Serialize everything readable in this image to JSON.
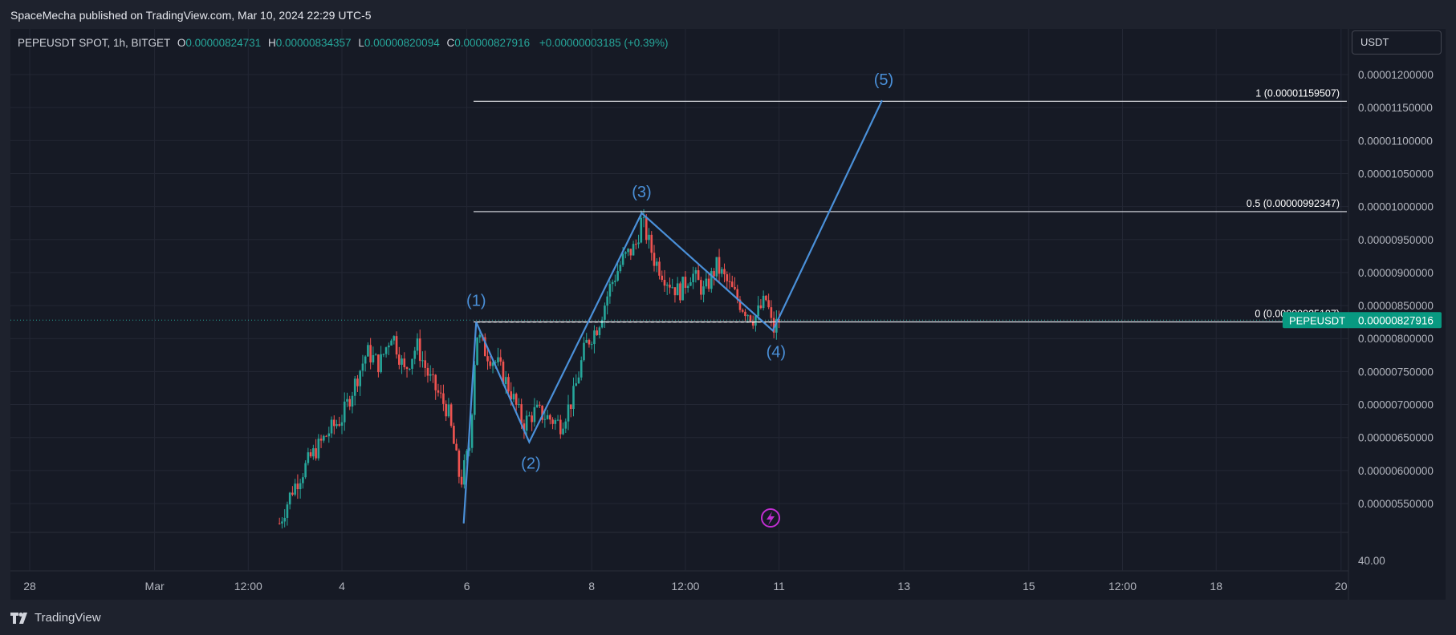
{
  "header": {
    "published": "SpaceMecha published on TradingView.com, Mar 10, 2024 22:29 UTC-5"
  },
  "legend": {
    "symbol": "PEPEUSDT SPOT, 1h, BITGET",
    "o_label": "O",
    "o_value": "0.00000824731",
    "h_label": "H",
    "h_value": "0.00000834357",
    "l_label": "L",
    "l_value": "0.00000820094",
    "c_label": "C",
    "c_value": "0.00000827916",
    "change": "+0.00000003185 (+0.39%)"
  },
  "currency_button": "USDT",
  "brand": {
    "name": "TradingView"
  },
  "colors": {
    "up": "#26a69a",
    "down": "#ef5350",
    "wave": "#4a90d9",
    "background": "#161a25",
    "grid": "#232734"
  },
  "chart_data": {
    "type": "candlestick",
    "symbol": "PEPEUSDT",
    "price_axis_ticks": [
      "0.00001200000",
      "0.00001150000",
      "0.00001100000",
      "0.00001050000",
      "0.00001000000",
      "0.00000950000",
      "0.00000900000",
      "0.00000850000",
      "0.00000800000",
      "0.00000750000",
      "0.00000700000",
      "0.00000650000",
      "0.00000600000",
      "0.00000550000"
    ],
    "volume_axis_tick": "40.00",
    "time_axis_ticks": [
      {
        "label": "28",
        "x": 0.0
      },
      {
        "label": "Mar",
        "x": 2.0
      },
      {
        "label": "12:00",
        "x": 3.5
      },
      {
        "label": "4",
        "x": 5.0
      },
      {
        "label": "6",
        "x": 7.0
      },
      {
        "label": "8",
        "x": 9.0
      },
      {
        "label": "12:00",
        "x": 10.5
      },
      {
        "label": "11",
        "x": 12.0
      },
      {
        "label": "13",
        "x": 14.0
      },
      {
        "label": "15",
        "x": 16.0
      },
      {
        "label": "12:00",
        "x": 17.5
      },
      {
        "label": "18",
        "x": 19.0
      },
      {
        "label": "20",
        "x": 21.0
      }
    ],
    "ylim": [
      5.2e-06,
      1.23e-05
    ],
    "last_price": {
      "label": "PEPEUSDT",
      "value": "0.00000827916",
      "y": 8.27916e-06
    },
    "fib_levels": [
      {
        "label": "1 (0.00001159507)",
        "y": 1.159507e-05
      },
      {
        "label": "0.5 (0.00000992347)",
        "y": 9.92347e-06
      },
      {
        "label": "0 (0.00000825187)",
        "y": 8.25187e-06
      }
    ],
    "elliott_waves": [
      {
        "label": "",
        "x": 6.95,
        "y": 5.2e-06
      },
      {
        "label": "(1)",
        "x": 7.15,
        "y": 8.25e-06
      },
      {
        "label": "(2)",
        "x": 8.0,
        "y": 6.43e-06
      },
      {
        "label": "(3)",
        "x": 9.8,
        "y": 9.9e-06
      },
      {
        "label": "(4)",
        "x": 11.9,
        "y": 8.12e-06
      },
      {
        "label": "(5)",
        "x": 13.65,
        "y": 1.161e-05
      }
    ],
    "wave_label_text": [
      "(1)",
      "(2)",
      "(3)",
      "(4)",
      "(5)"
    ],
    "trend_dashed": [
      {
        "x": 6.95,
        "y": 5.2e-06
      },
      {
        "x": 7.15,
        "y": 8.25e-06
      },
      {
        "x": 11.9,
        "y": 8.25e-06
      }
    ],
    "price_path": [
      [
        4.0,
        5.2e-06
      ],
      [
        4.2,
        5.7e-06
      ],
      [
        4.5,
        6.2e-06
      ],
      [
        4.8,
        6.6e-06
      ],
      [
        5.0,
        6.8e-06
      ],
      [
        5.2,
        7.3e-06
      ],
      [
        5.4,
        7.8e-06
      ],
      [
        5.6,
        7.6e-06
      ],
      [
        5.8,
        8.1e-06
      ],
      [
        6.0,
        7.5e-06
      ],
      [
        6.2,
        7.9e-06
      ],
      [
        6.4,
        7.4e-06
      ],
      [
        6.7,
        6.9e-06
      ],
      [
        6.9,
        5.8e-06
      ],
      [
        7.05,
        6.4e-06
      ],
      [
        7.15,
        8.1e-06
      ],
      [
        7.3,
        7.8e-06
      ],
      [
        7.5,
        7.6e-06
      ],
      [
        7.7,
        7.2e-06
      ],
      [
        7.9,
        6.7e-06
      ],
      [
        8.1,
        6.9e-06
      ],
      [
        8.3,
        6.8e-06
      ],
      [
        8.5,
        6.7e-06
      ],
      [
        8.7,
        7.1e-06
      ],
      [
        8.9,
        7.9e-06
      ],
      [
        9.1,
        8.2e-06
      ],
      [
        9.3,
        8.8e-06
      ],
      [
        9.5,
        9.2e-06
      ],
      [
        9.7,
        9.4e-06
      ],
      [
        9.8,
        9.8e-06
      ],
      [
        10.0,
        9.2e-06
      ],
      [
        10.2,
        8.9e-06
      ],
      [
        10.4,
        8.7e-06
      ],
      [
        10.6,
        9e-06
      ],
      [
        10.8,
        8.7e-06
      ],
      [
        11.0,
        9.1e-06
      ],
      [
        11.2,
        8.8e-06
      ],
      [
        11.4,
        8.5e-06
      ],
      [
        11.6,
        8.3e-06
      ],
      [
        11.8,
        8.6e-06
      ],
      [
        11.9,
        8.1e-06
      ],
      [
        12.0,
        8.3e-06
      ]
    ]
  }
}
